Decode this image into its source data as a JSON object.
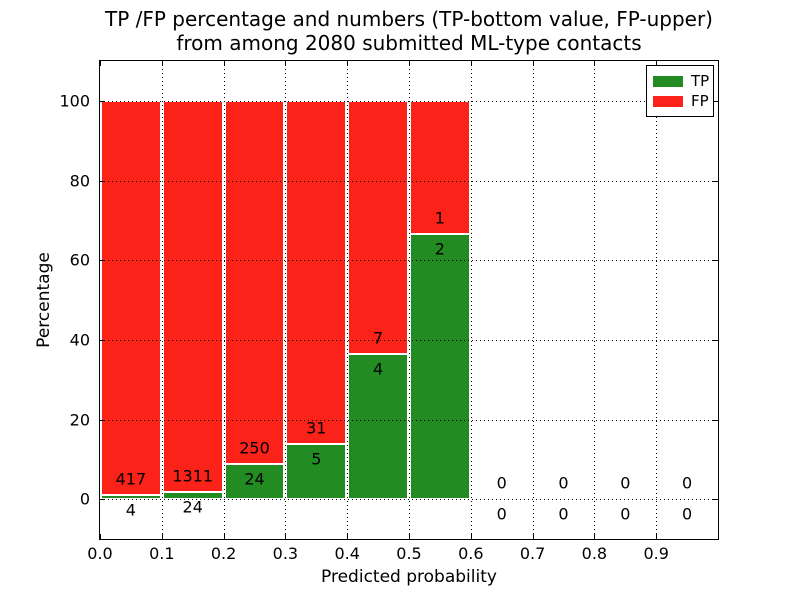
{
  "figure": {
    "title_line1": "TP /FP percentage and numbers (TP-bottom value, FP-upper)",
    "title_line2": "from among 2080 submitted ML-type contacts"
  },
  "chart_data": {
    "type": "bar",
    "stacked": true,
    "normalized_to_percent": true,
    "title": "TP /FP percentage and numbers (TP-bottom value, FP-upper) from among 2080 submitted ML-type contacts",
    "total_contacts": 2080,
    "xlabel": "Predicted probability",
    "ylabel": "Percentage",
    "xlim": [
      0.0,
      1.0
    ],
    "ylim": [
      -10,
      110
    ],
    "x_ticks": [
      "0.0",
      "0.1",
      "0.2",
      "0.3",
      "0.4",
      "0.5",
      "0.6",
      "0.7",
      "0.8",
      "0.9"
    ],
    "y_ticks": [
      0,
      20,
      40,
      60,
      80,
      100
    ],
    "grid": "dotted, drawn over bars",
    "legend": {
      "position": "upper right",
      "entries": [
        {
          "label": "TP",
          "color": "#228b22"
        },
        {
          "label": "FP",
          "color": "#fa2219"
        }
      ]
    },
    "colors": {
      "tp": "#228b22",
      "fp": "#fa2219",
      "bar_edge": "#ffffff",
      "axes": "#000000"
    },
    "bins": [
      {
        "range": [
          0.0,
          0.1
        ],
        "tp": 4,
        "fp": 417,
        "tp_pct": 0.95
      },
      {
        "range": [
          0.1,
          0.2
        ],
        "tp": 24,
        "fp": 1311,
        "tp_pct": 1.8
      },
      {
        "range": [
          0.2,
          0.3
        ],
        "tp": 24,
        "fp": 250,
        "tp_pct": 8.76
      },
      {
        "range": [
          0.3,
          0.4
        ],
        "tp": 5,
        "fp": 31,
        "tp_pct": 13.89
      },
      {
        "range": [
          0.4,
          0.5
        ],
        "tp": 4,
        "fp": 7,
        "tp_pct": 36.36
      },
      {
        "range": [
          0.5,
          0.6
        ],
        "tp": 2,
        "fp": 1,
        "tp_pct": 66.67
      },
      {
        "range": [
          0.6,
          0.7
        ],
        "tp": 0,
        "fp": 0,
        "tp_pct": 0
      },
      {
        "range": [
          0.7,
          0.8
        ],
        "tp": 0,
        "fp": 0,
        "tp_pct": 0
      },
      {
        "range": [
          0.8,
          0.9
        ],
        "tp": 0,
        "fp": 0,
        "tp_pct": 0
      },
      {
        "range": [
          0.9,
          1.0
        ],
        "tp": 0,
        "fp": 0,
        "tp_pct": 0
      }
    ]
  }
}
